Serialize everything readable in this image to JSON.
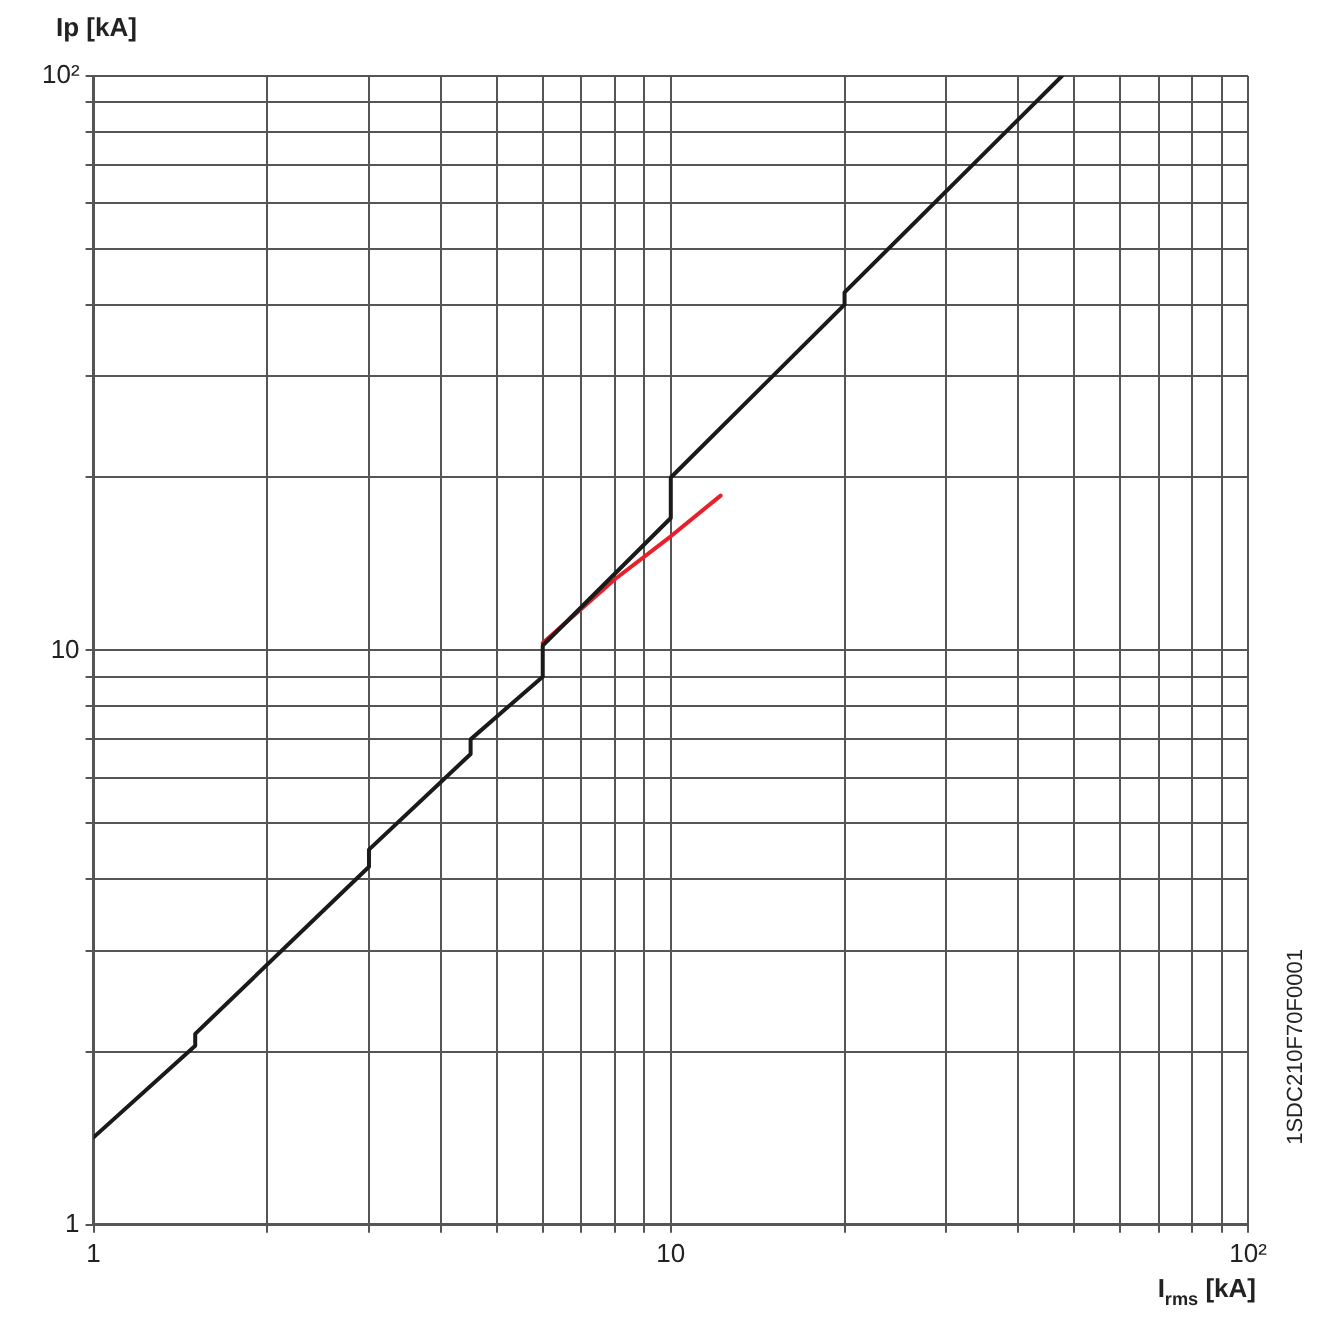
{
  "chart_data": {
    "type": "line",
    "xlabel": "I$_{rms}$ [kA]",
    "ylabel": "Ip [kA]",
    "log": "xy",
    "grid": true,
    "marker": "none",
    "line_style": "solid",
    "legend": false,
    "xlim": [
      1,
      100
    ],
    "ylim": [
      1,
      100
    ],
    "xticks": [
      1,
      {
        "value": 2,
        "label": null
      },
      {
        "value": 3,
        "label": null
      },
      {
        "value": 4,
        "label": null
      },
      {
        "value": 5,
        "label": null
      },
      {
        "value": 6,
        "label": null
      },
      {
        "value": 7,
        "label": null
      },
      {
        "value": 8,
        "label": null
      },
      {
        "value": 9,
        "label": null
      },
      10,
      {
        "value": 20,
        "label": null
      },
      {
        "value": 30,
        "label": null
      },
      {
        "value": 40,
        "label": null
      },
      {
        "value": 50,
        "label": null
      },
      {
        "value": 60,
        "label": null
      },
      {
        "value": 70,
        "label": null
      },
      {
        "value": 80,
        "label": null
      },
      {
        "value": 90,
        "label": null
      },
      {
        "value": 100,
        "label": "10²"
      }
    ],
    "yticks": [
      1,
      {
        "value": 2,
        "label": null
      },
      {
        "value": 3,
        "label": null
      },
      {
        "value": 4,
        "label": null
      },
      {
        "value": 5,
        "label": null
      },
      {
        "value": 6,
        "label": null
      },
      {
        "value": 7,
        "label": null
      },
      {
        "value": 8,
        "label": null
      },
      {
        "value": 9,
        "label": null
      },
      10,
      {
        "value": 20,
        "label": null
      },
      {
        "value": 30,
        "label": null
      },
      {
        "value": 40,
        "label": null
      },
      {
        "value": 50,
        "label": null
      },
      {
        "value": 60,
        "label": null
      },
      {
        "value": 70,
        "label": null
      },
      {
        "value": 80,
        "label": null
      },
      {
        "value": 90,
        "label": null
      },
      {
        "value": 100,
        "label": "10²"
      }
    ],
    "series": [
      {
        "color": "#1a1a1a",
        "x": [
          1,
          1.5,
          1.5,
          3,
          3,
          4.5,
          4.5,
          6,
          6,
          10,
          10,
          20,
          20,
          47.6
        ],
        "values": [
          1.42,
          2.05,
          2.15,
          4.2,
          4.5,
          6.6,
          7.0,
          9.0,
          10.2,
          17,
          20,
          40,
          42,
          100
        ]
      },
      {
        "color": "#e8202a",
        "x": [
          6,
          8,
          10,
          12.2
        ],
        "values": [
          10.3,
          13.3,
          15.8,
          18.6
        ]
      }
    ],
    "annotations": [
      "1SDC210F70F0001"
    ]
  }
}
